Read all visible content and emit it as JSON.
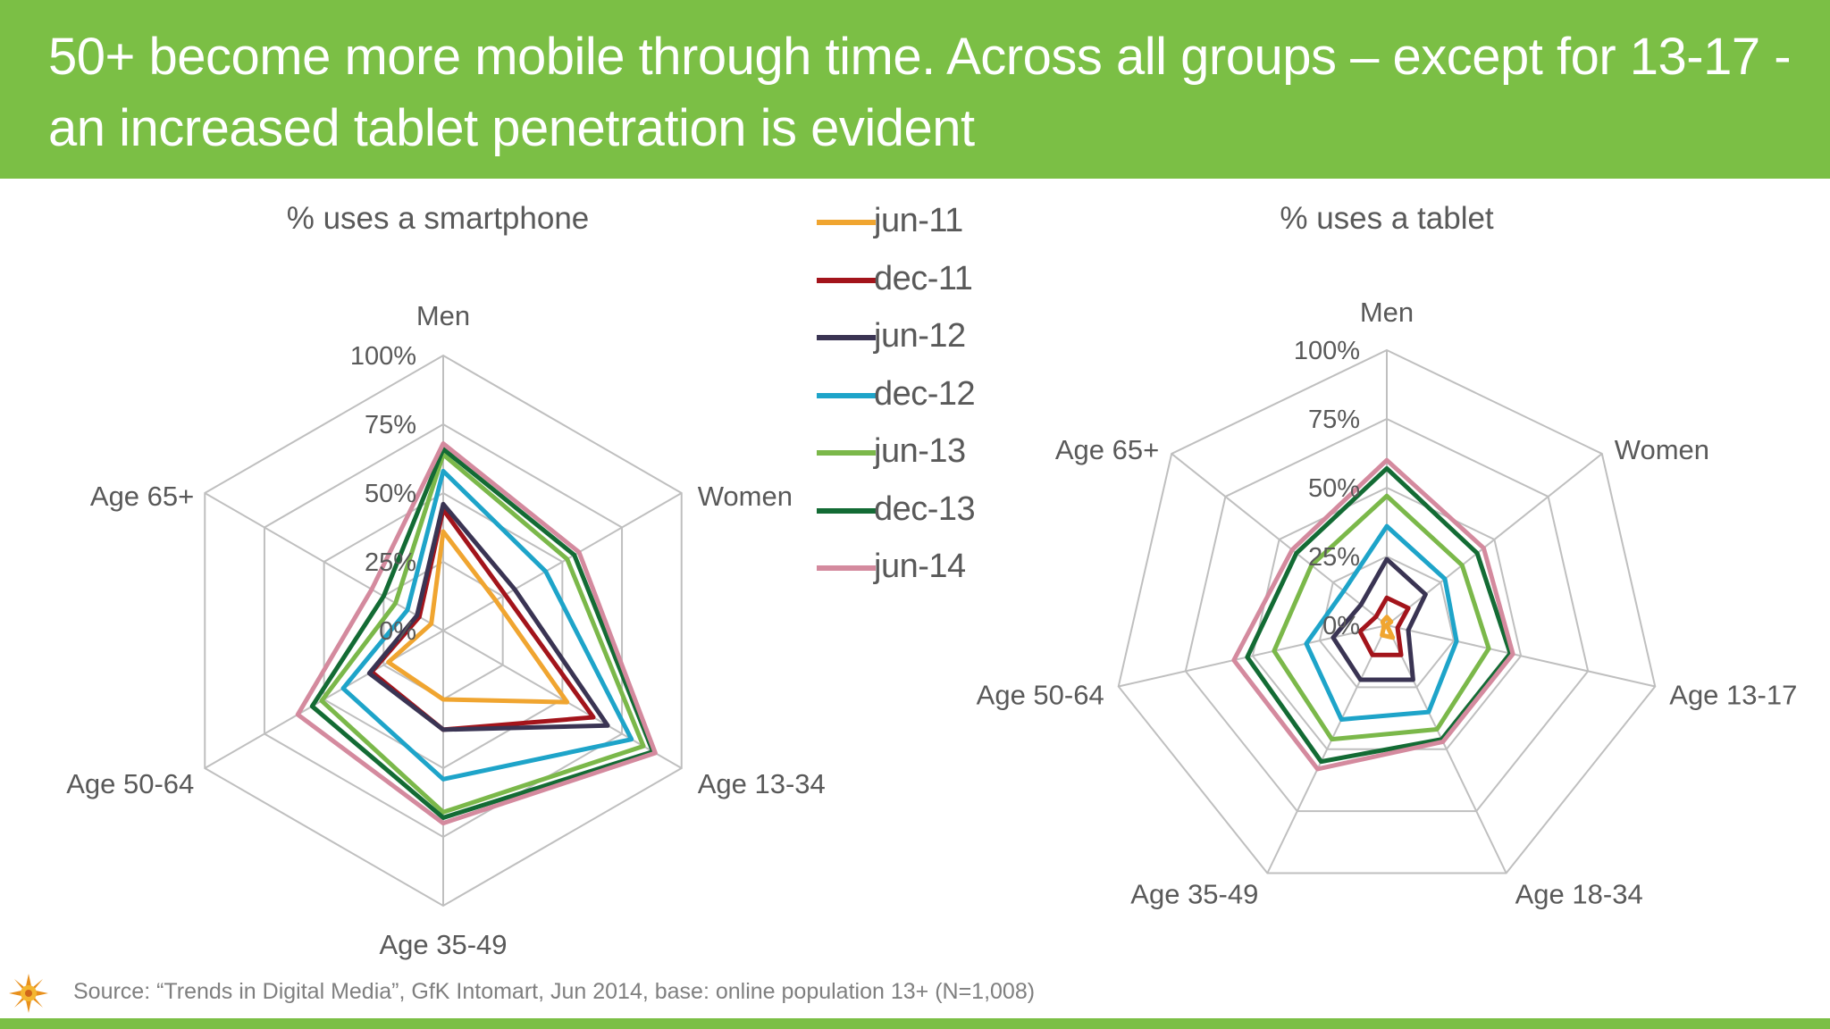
{
  "header": {
    "title": "50+ become more mobile through time. Across all groups – except for 13-17 - an increased tablet penetration is evident"
  },
  "footer": {
    "source": "Source: “Trends in Digital Media”, GfK Intomart, Jun 2014, base: online population 13+ (N=1,008)",
    "logo_icon": "sun-logo-icon"
  },
  "colors": {
    "header_bg": "#7bbf45",
    "grid": "#bfbfbf",
    "text": "#595959"
  },
  "legend": [
    {
      "name": "jun-11",
      "color": "#f0a530"
    },
    {
      "name": "dec-11",
      "color": "#a3141b"
    },
    {
      "name": "jun-12",
      "color": "#3a3453"
    },
    {
      "name": "dec-12",
      "color": "#1ea4c9"
    },
    {
      "name": "jun-13",
      "color": "#7bb84a"
    },
    {
      "name": "dec-13",
      "color": "#136b34"
    },
    {
      "name": "jun-14",
      "color": "#d48a9e"
    }
  ],
  "chart_data": [
    {
      "type": "radar",
      "title": "% uses a smartphone",
      "categories": [
        "Men",
        "Women",
        "Age 13-34",
        "Age 35-49",
        "Age 50-64",
        "Age 65+"
      ],
      "tick_labels": [
        "0%",
        "25%",
        "50%",
        "75%",
        "100%"
      ],
      "ylim": [
        0,
        100
      ],
      "grid": true,
      "series": [
        {
          "name": "jun-11",
          "values": [
            36,
            22,
            52,
            25,
            23,
            5
          ]
        },
        {
          "name": "dec-11",
          "values": [
            44,
            26,
            63,
            36,
            30,
            10
          ]
        },
        {
          "name": "jun-12",
          "values": [
            46,
            30,
            69,
            36,
            31,
            11
          ]
        },
        {
          "name": "dec-12",
          "values": [
            58,
            43,
            79,
            54,
            42,
            15
          ]
        },
        {
          "name": "jun-13",
          "values": [
            64,
            52,
            84,
            66,
            51,
            20
          ]
        },
        {
          "name": "dec-13",
          "values": [
            66,
            55,
            88,
            68,
            55,
            25
          ]
        },
        {
          "name": "jun-14",
          "values": [
            68,
            57,
            89,
            70,
            61,
            30
          ]
        }
      ]
    },
    {
      "type": "radar",
      "title": "% uses a tablet",
      "categories": [
        "Men",
        "Women",
        "Age 13-17",
        "Age 18-34",
        "Age 35-49",
        "Age 50-64",
        "Age 65+"
      ],
      "tick_labels": [
        "0%",
        "25%",
        "50%",
        "75%",
        "100%"
      ],
      "ylim": [
        0,
        100
      ],
      "grid": true,
      "series": [
        {
          "name": "jun-11",
          "values": [
            3,
            2,
            0,
            5,
            4,
            1,
            2
          ]
        },
        {
          "name": "dec-11",
          "values": [
            10,
            10,
            4,
            12,
            12,
            10,
            5
          ]
        },
        {
          "name": "jun-12",
          "values": [
            24,
            18,
            8,
            22,
            22,
            20,
            12
          ]
        },
        {
          "name": "dec-12",
          "values": [
            36,
            27,
            26,
            35,
            38,
            30,
            20
          ]
        },
        {
          "name": "jun-13",
          "values": [
            47,
            35,
            38,
            42,
            46,
            42,
            35
          ]
        },
        {
          "name": "dec-13",
          "values": [
            57,
            42,
            46,
            46,
            55,
            52,
            42
          ]
        },
        {
          "name": "jun-14",
          "values": [
            60,
            45,
            47,
            47,
            58,
            57,
            44
          ]
        }
      ]
    }
  ]
}
